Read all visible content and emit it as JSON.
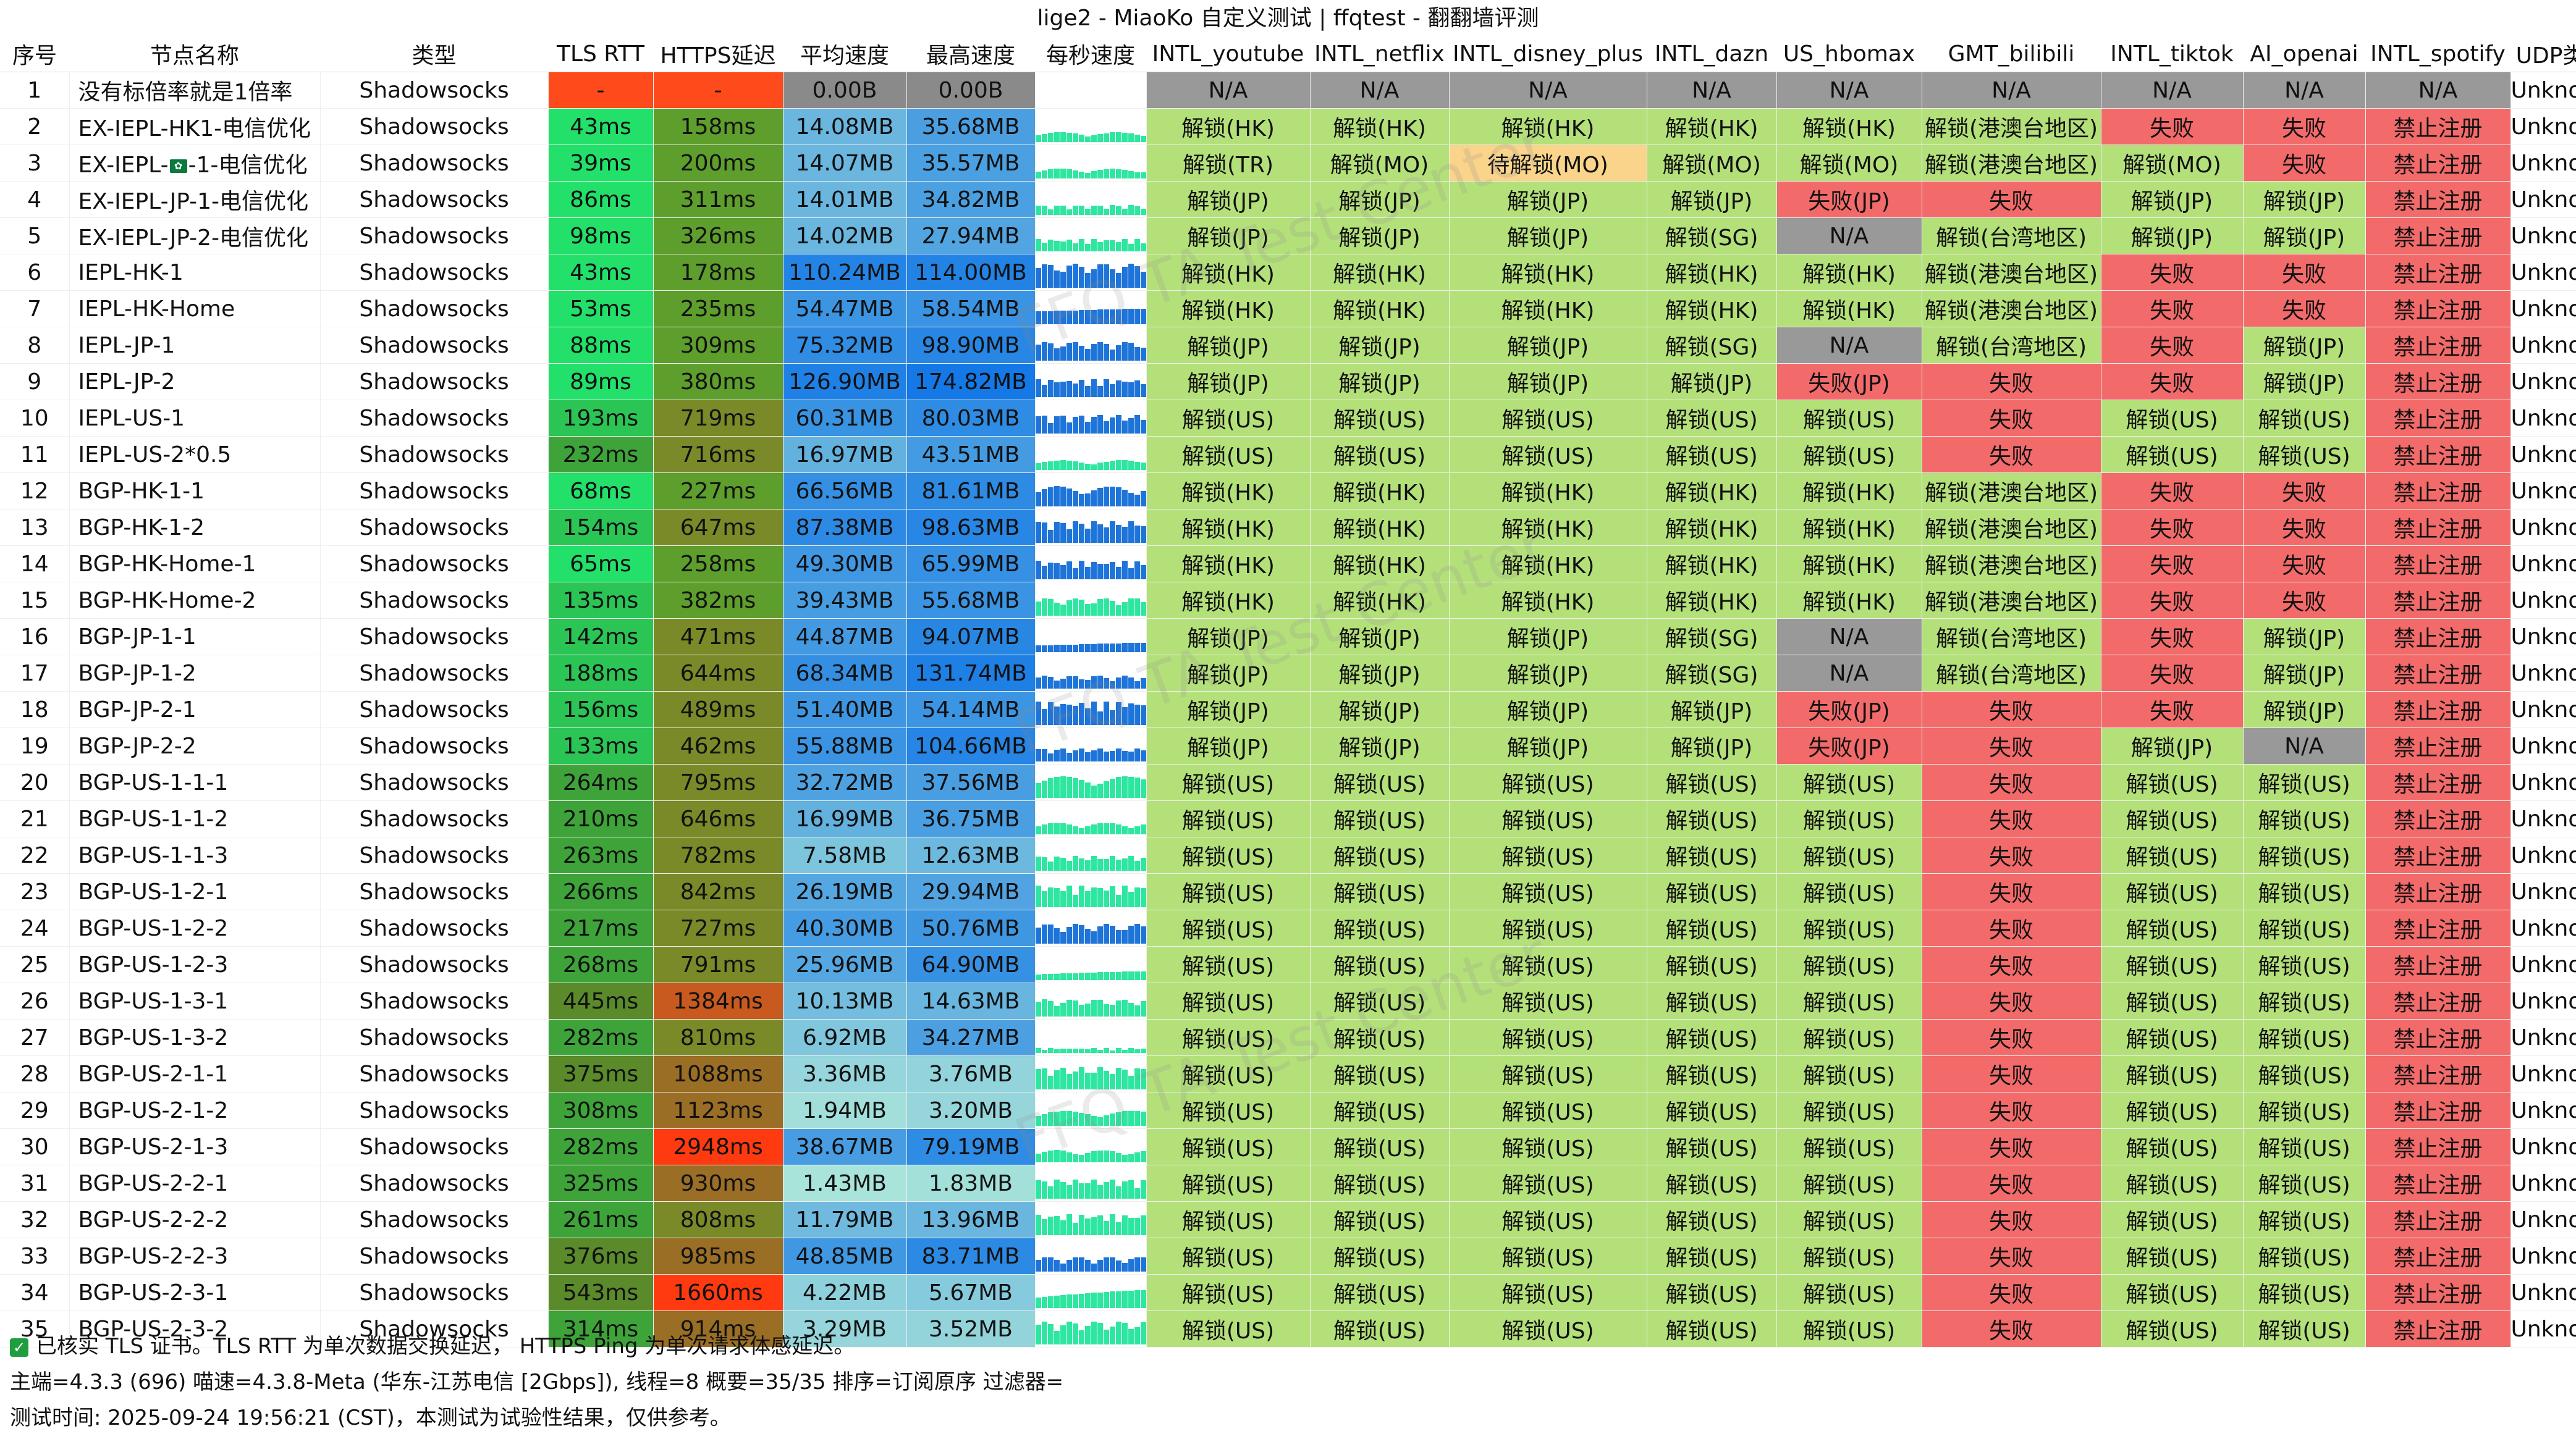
{
  "window": {
    "title": "lige2 - MiaoKo 自定义测试 | ffqtest - 翻翻墙评测"
  },
  "watermark": "FFQ TA Test Center",
  "columns": [
    "序号",
    "节点名称",
    "类型",
    "TLS RTT",
    "HTTPS延迟",
    "平均速度",
    "最高速度",
    "每秒速度",
    "INTL_youtube",
    "INTL_netflix",
    "INTL_disney_plus",
    "INTL_dazn",
    "US_hbomax",
    "GMT_bilibili",
    "INTL_tiktok",
    "AI_openai",
    "INTL_spotify",
    "UDP类型"
  ],
  "colors": {
    "rtt": {
      "-": "#ff4a1c",
      "good": "#22e06a",
      "mid": "#2bc556",
      "slow": "#3ea43a",
      "bad": "#5a8a2a"
    },
    "https": {
      "-": "#ff4a1c",
      "ok": "#5e9e2c",
      "mid": "#7a8a28",
      "slow": "#9a6e24",
      "bad": "#c85a20",
      "worst": "#ff3a10"
    },
    "speed_zero": "#8a8a8a",
    "unlock_ok": "#b4e07a",
    "unlock_fail": "#f26a6a",
    "unlock_na": "#999999",
    "unlock_pending": "#f9d48a",
    "spark_fast": "#1e74d8",
    "spark_slow": "#2ee6a0"
  },
  "rows": [
    {
      "idx": "1",
      "name": "没有标倍率就是1倍率",
      "type": "Shadowsocks",
      "rtt": "-",
      "https": "-",
      "avg": "0.00B",
      "max": "0.00B",
      "yt": "N/A",
      "nf": "N/A",
      "dp": "N/A",
      "dazn": "N/A",
      "hbo": "N/A",
      "bili": "N/A",
      "tiktok": "N/A",
      "openai": "N/A",
      "spotify": "N/A",
      "udp": "Unknown"
    },
    {
      "idx": "2",
      "name": "EX-IEPL-HK1-电信优化",
      "type": "Shadowsocks",
      "rtt": "43ms",
      "https": "158ms",
      "avg": "14.08MB",
      "max": "35.68MB",
      "yt": "解锁(HK)",
      "nf": "解锁(HK)",
      "dp": "解锁(HK)",
      "dazn": "解锁(HK)",
      "hbo": "解锁(HK)",
      "bili": "解锁(港澳台地区)",
      "tiktok": "失败",
      "openai": "失败",
      "spotify": "禁止注册",
      "udp": "Unknown"
    },
    {
      "idx": "3",
      "name_pre": "EX-IEPL-",
      "flag": "HK",
      "name_post": "-1-电信优化",
      "name": "EX-IEPL--1-电信优化",
      "type": "Shadowsocks",
      "rtt": "39ms",
      "https": "200ms",
      "avg": "14.07MB",
      "max": "35.57MB",
      "yt": "解锁(TR)",
      "nf": "解锁(MO)",
      "dp": "待解锁(MO)",
      "dazn": "解锁(MO)",
      "hbo": "解锁(MO)",
      "bili": "解锁(港澳台地区)",
      "tiktok": "解锁(MO)",
      "openai": "失败",
      "spotify": "禁止注册",
      "udp": "Unknown"
    },
    {
      "idx": "4",
      "name": "EX-IEPL-JP-1-电信优化",
      "type": "Shadowsocks",
      "rtt": "86ms",
      "https": "311ms",
      "avg": "14.01MB",
      "max": "34.82MB",
      "yt": "解锁(JP)",
      "nf": "解锁(JP)",
      "dp": "解锁(JP)",
      "dazn": "解锁(JP)",
      "hbo": "失败(JP)",
      "bili": "失败",
      "tiktok": "解锁(JP)",
      "openai": "解锁(JP)",
      "spotify": "禁止注册",
      "udp": "Unknown"
    },
    {
      "idx": "5",
      "name": "EX-IEPL-JP-2-电信优化",
      "type": "Shadowsocks",
      "rtt": "98ms",
      "https": "326ms",
      "avg": "14.02MB",
      "max": "27.94MB",
      "yt": "解锁(JP)",
      "nf": "解锁(JP)",
      "dp": "解锁(JP)",
      "dazn": "解锁(SG)",
      "hbo": "N/A",
      "bili": "解锁(台湾地区)",
      "tiktok": "解锁(JP)",
      "openai": "解锁(JP)",
      "spotify": "禁止注册",
      "udp": "Unknown"
    },
    {
      "idx": "6",
      "name": "IEPL-HK-1",
      "type": "Shadowsocks",
      "rtt": "43ms",
      "https": "178ms",
      "avg": "110.24MB",
      "max": "114.00MB",
      "yt": "解锁(HK)",
      "nf": "解锁(HK)",
      "dp": "解锁(HK)",
      "dazn": "解锁(HK)",
      "hbo": "解锁(HK)",
      "bili": "解锁(港澳台地区)",
      "tiktok": "失败",
      "openai": "失败",
      "spotify": "禁止注册",
      "udp": "Unknown"
    },
    {
      "idx": "7",
      "name": "IEPL-HK-Home",
      "type": "Shadowsocks",
      "rtt": "53ms",
      "https": "235ms",
      "avg": "54.47MB",
      "max": "58.54MB",
      "yt": "解锁(HK)",
      "nf": "解锁(HK)",
      "dp": "解锁(HK)",
      "dazn": "解锁(HK)",
      "hbo": "解锁(HK)",
      "bili": "解锁(港澳台地区)",
      "tiktok": "失败",
      "openai": "失败",
      "spotify": "禁止注册",
      "udp": "Unknown"
    },
    {
      "idx": "8",
      "name": "IEPL-JP-1",
      "type": "Shadowsocks",
      "rtt": "88ms",
      "https": "309ms",
      "avg": "75.32MB",
      "max": "98.90MB",
      "yt": "解锁(JP)",
      "nf": "解锁(JP)",
      "dp": "解锁(JP)",
      "dazn": "解锁(SG)",
      "hbo": "N/A",
      "bili": "解锁(台湾地区)",
      "tiktok": "失败",
      "openai": "解锁(JP)",
      "spotify": "禁止注册",
      "udp": "Unknown"
    },
    {
      "idx": "9",
      "name": "IEPL-JP-2",
      "type": "Shadowsocks",
      "rtt": "89ms",
      "https": "380ms",
      "avg": "126.90MB",
      "max": "174.82MB",
      "yt": "解锁(JP)",
      "nf": "解锁(JP)",
      "dp": "解锁(JP)",
      "dazn": "解锁(JP)",
      "hbo": "失败(JP)",
      "bili": "失败",
      "tiktok": "失败",
      "openai": "解锁(JP)",
      "spotify": "禁止注册",
      "udp": "Unknown"
    },
    {
      "idx": "10",
      "name": "IEPL-US-1",
      "type": "Shadowsocks",
      "rtt": "193ms",
      "https": "719ms",
      "avg": "60.31MB",
      "max": "80.03MB",
      "yt": "解锁(US)",
      "nf": "解锁(US)",
      "dp": "解锁(US)",
      "dazn": "解锁(US)",
      "hbo": "解锁(US)",
      "bili": "失败",
      "tiktok": "解锁(US)",
      "openai": "解锁(US)",
      "spotify": "禁止注册",
      "udp": "Unknown"
    },
    {
      "idx": "11",
      "name": "IEPL-US-2*0.5",
      "type": "Shadowsocks",
      "rtt": "232ms",
      "https": "716ms",
      "avg": "16.97MB",
      "max": "43.51MB",
      "yt": "解锁(US)",
      "nf": "解锁(US)",
      "dp": "解锁(US)",
      "dazn": "解锁(US)",
      "hbo": "解锁(US)",
      "bili": "失败",
      "tiktok": "解锁(US)",
      "openai": "解锁(US)",
      "spotify": "禁止注册",
      "udp": "Unknown"
    },
    {
      "idx": "12",
      "name": "BGP-HK-1-1",
      "type": "Shadowsocks",
      "rtt": "68ms",
      "https": "227ms",
      "avg": "66.56MB",
      "max": "81.61MB",
      "yt": "解锁(HK)",
      "nf": "解锁(HK)",
      "dp": "解锁(HK)",
      "dazn": "解锁(HK)",
      "hbo": "解锁(HK)",
      "bili": "解锁(港澳台地区)",
      "tiktok": "失败",
      "openai": "失败",
      "spotify": "禁止注册",
      "udp": "Unknown"
    },
    {
      "idx": "13",
      "name": "BGP-HK-1-2",
      "type": "Shadowsocks",
      "rtt": "154ms",
      "https": "647ms",
      "avg": "87.38MB",
      "max": "98.63MB",
      "yt": "解锁(HK)",
      "nf": "解锁(HK)",
      "dp": "解锁(HK)",
      "dazn": "解锁(HK)",
      "hbo": "解锁(HK)",
      "bili": "解锁(港澳台地区)",
      "tiktok": "失败",
      "openai": "失败",
      "spotify": "禁止注册",
      "udp": "Unknown"
    },
    {
      "idx": "14",
      "name": "BGP-HK-Home-1",
      "type": "Shadowsocks",
      "rtt": "65ms",
      "https": "258ms",
      "avg": "49.30MB",
      "max": "65.99MB",
      "yt": "解锁(HK)",
      "nf": "解锁(HK)",
      "dp": "解锁(HK)",
      "dazn": "解锁(HK)",
      "hbo": "解锁(HK)",
      "bili": "解锁(港澳台地区)",
      "tiktok": "失败",
      "openai": "失败",
      "spotify": "禁止注册",
      "udp": "Unknown"
    },
    {
      "idx": "15",
      "name": "BGP-HK-Home-2",
      "type": "Shadowsocks",
      "rtt": "135ms",
      "https": "382ms",
      "avg": "39.43MB",
      "max": "55.68MB",
      "yt": "解锁(HK)",
      "nf": "解锁(HK)",
      "dp": "解锁(HK)",
      "dazn": "解锁(HK)",
      "hbo": "解锁(HK)",
      "bili": "解锁(港澳台地区)",
      "tiktok": "失败",
      "openai": "失败",
      "spotify": "禁止注册",
      "udp": "Unknown"
    },
    {
      "idx": "16",
      "name": "BGP-JP-1-1",
      "type": "Shadowsocks",
      "rtt": "142ms",
      "https": "471ms",
      "avg": "44.87MB",
      "max": "94.07MB",
      "yt": "解锁(JP)",
      "nf": "解锁(JP)",
      "dp": "解锁(JP)",
      "dazn": "解锁(SG)",
      "hbo": "N/A",
      "bili": "解锁(台湾地区)",
      "tiktok": "失败",
      "openai": "解锁(JP)",
      "spotify": "禁止注册",
      "udp": "Unknown"
    },
    {
      "idx": "17",
      "name": "BGP-JP-1-2",
      "type": "Shadowsocks",
      "rtt": "188ms",
      "https": "644ms",
      "avg": "68.34MB",
      "max": "131.74MB",
      "yt": "解锁(JP)",
      "nf": "解锁(JP)",
      "dp": "解锁(JP)",
      "dazn": "解锁(SG)",
      "hbo": "N/A",
      "bili": "解锁(台湾地区)",
      "tiktok": "失败",
      "openai": "解锁(JP)",
      "spotify": "禁止注册",
      "udp": "Unknown"
    },
    {
      "idx": "18",
      "name": "BGP-JP-2-1",
      "type": "Shadowsocks",
      "rtt": "156ms",
      "https": "489ms",
      "avg": "51.40MB",
      "max": "54.14MB",
      "yt": "解锁(JP)",
      "nf": "解锁(JP)",
      "dp": "解锁(JP)",
      "dazn": "解锁(JP)",
      "hbo": "失败(JP)",
      "bili": "失败",
      "tiktok": "失败",
      "openai": "解锁(JP)",
      "spotify": "禁止注册",
      "udp": "Unknown"
    },
    {
      "idx": "19",
      "name": "BGP-JP-2-2",
      "type": "Shadowsocks",
      "rtt": "133ms",
      "https": "462ms",
      "avg": "55.88MB",
      "max": "104.66MB",
      "yt": "解锁(JP)",
      "nf": "解锁(JP)",
      "dp": "解锁(JP)",
      "dazn": "解锁(JP)",
      "hbo": "失败(JP)",
      "bili": "失败",
      "tiktok": "解锁(JP)",
      "openai": "N/A",
      "spotify": "禁止注册",
      "udp": "Unknown"
    },
    {
      "idx": "20",
      "name": "BGP-US-1-1-1",
      "type": "Shadowsocks",
      "rtt": "264ms",
      "https": "795ms",
      "avg": "32.72MB",
      "max": "37.56MB",
      "yt": "解锁(US)",
      "nf": "解锁(US)",
      "dp": "解锁(US)",
      "dazn": "解锁(US)",
      "hbo": "解锁(US)",
      "bili": "失败",
      "tiktok": "解锁(US)",
      "openai": "解锁(US)",
      "spotify": "禁止注册",
      "udp": "Unknown"
    },
    {
      "idx": "21",
      "name": "BGP-US-1-1-2",
      "type": "Shadowsocks",
      "rtt": "210ms",
      "https": "646ms",
      "avg": "16.99MB",
      "max": "36.75MB",
      "yt": "解锁(US)",
      "nf": "解锁(US)",
      "dp": "解锁(US)",
      "dazn": "解锁(US)",
      "hbo": "解锁(US)",
      "bili": "失败",
      "tiktok": "解锁(US)",
      "openai": "解锁(US)",
      "spotify": "禁止注册",
      "udp": "Unknown"
    },
    {
      "idx": "22",
      "name": "BGP-US-1-1-3",
      "type": "Shadowsocks",
      "rtt": "263ms",
      "https": "782ms",
      "avg": "7.58MB",
      "max": "12.63MB",
      "yt": "解锁(US)",
      "nf": "解锁(US)",
      "dp": "解锁(US)",
      "dazn": "解锁(US)",
      "hbo": "解锁(US)",
      "bili": "失败",
      "tiktok": "解锁(US)",
      "openai": "解锁(US)",
      "spotify": "禁止注册",
      "udp": "Unknown"
    },
    {
      "idx": "23",
      "name": "BGP-US-1-2-1",
      "type": "Shadowsocks",
      "rtt": "266ms",
      "https": "842ms",
      "avg": "26.19MB",
      "max": "29.94MB",
      "yt": "解锁(US)",
      "nf": "解锁(US)",
      "dp": "解锁(US)",
      "dazn": "解锁(US)",
      "hbo": "解锁(US)",
      "bili": "失败",
      "tiktok": "解锁(US)",
      "openai": "解锁(US)",
      "spotify": "禁止注册",
      "udp": "Unknown"
    },
    {
      "idx": "24",
      "name": "BGP-US-1-2-2",
      "type": "Shadowsocks",
      "rtt": "217ms",
      "https": "727ms",
      "avg": "40.30MB",
      "max": "50.76MB",
      "yt": "解锁(US)",
      "nf": "解锁(US)",
      "dp": "解锁(US)",
      "dazn": "解锁(US)",
      "hbo": "解锁(US)",
      "bili": "失败",
      "tiktok": "解锁(US)",
      "openai": "解锁(US)",
      "spotify": "禁止注册",
      "udp": "Unknown"
    },
    {
      "idx": "25",
      "name": "BGP-US-1-2-3",
      "type": "Shadowsocks",
      "rtt": "268ms",
      "https": "791ms",
      "avg": "25.96MB",
      "max": "64.90MB",
      "yt": "解锁(US)",
      "nf": "解锁(US)",
      "dp": "解锁(US)",
      "dazn": "解锁(US)",
      "hbo": "解锁(US)",
      "bili": "失败",
      "tiktok": "解锁(US)",
      "openai": "解锁(US)",
      "spotify": "禁止注册",
      "udp": "Unknown"
    },
    {
      "idx": "26",
      "name": "BGP-US-1-3-1",
      "type": "Shadowsocks",
      "rtt": "445ms",
      "https": "1384ms",
      "avg": "10.13MB",
      "max": "14.63MB",
      "yt": "解锁(US)",
      "nf": "解锁(US)",
      "dp": "解锁(US)",
      "dazn": "解锁(US)",
      "hbo": "解锁(US)",
      "bili": "失败",
      "tiktok": "解锁(US)",
      "openai": "解锁(US)",
      "spotify": "禁止注册",
      "udp": "Unknown"
    },
    {
      "idx": "27",
      "name": "BGP-US-1-3-2",
      "type": "Shadowsocks",
      "rtt": "282ms",
      "https": "810ms",
      "avg": "6.92MB",
      "max": "34.27MB",
      "yt": "解锁(US)",
      "nf": "解锁(US)",
      "dp": "解锁(US)",
      "dazn": "解锁(US)",
      "hbo": "解锁(US)",
      "bili": "失败",
      "tiktok": "解锁(US)",
      "openai": "解锁(US)",
      "spotify": "禁止注册",
      "udp": "Unknown"
    },
    {
      "idx": "28",
      "name": "BGP-US-2-1-1",
      "type": "Shadowsocks",
      "rtt": "375ms",
      "https": "1088ms",
      "avg": "3.36MB",
      "max": "3.76MB",
      "yt": "解锁(US)",
      "nf": "解锁(US)",
      "dp": "解锁(US)",
      "dazn": "解锁(US)",
      "hbo": "解锁(US)",
      "bili": "失败",
      "tiktok": "解锁(US)",
      "openai": "解锁(US)",
      "spotify": "禁止注册",
      "udp": "Unknown"
    },
    {
      "idx": "29",
      "name": "BGP-US-2-1-2",
      "type": "Shadowsocks",
      "rtt": "308ms",
      "https": "1123ms",
      "avg": "1.94MB",
      "max": "3.20MB",
      "yt": "解锁(US)",
      "nf": "解锁(US)",
      "dp": "解锁(US)",
      "dazn": "解锁(US)",
      "hbo": "解锁(US)",
      "bili": "失败",
      "tiktok": "解锁(US)",
      "openai": "解锁(US)",
      "spotify": "禁止注册",
      "udp": "Unknown"
    },
    {
      "idx": "30",
      "name": "BGP-US-2-1-3",
      "type": "Shadowsocks",
      "rtt": "282ms",
      "https": "2948ms",
      "avg": "38.67MB",
      "max": "79.19MB",
      "yt": "解锁(US)",
      "nf": "解锁(US)",
      "dp": "解锁(US)",
      "dazn": "解锁(US)",
      "hbo": "解锁(US)",
      "bili": "失败",
      "tiktok": "解锁(US)",
      "openai": "解锁(US)",
      "spotify": "禁止注册",
      "udp": "Unknown"
    },
    {
      "idx": "31",
      "name": "BGP-US-2-2-1",
      "type": "Shadowsocks",
      "rtt": "325ms",
      "https": "930ms",
      "avg": "1.43MB",
      "max": "1.83MB",
      "yt": "解锁(US)",
      "nf": "解锁(US)",
      "dp": "解锁(US)",
      "dazn": "解锁(US)",
      "hbo": "解锁(US)",
      "bili": "失败",
      "tiktok": "解锁(US)",
      "openai": "解锁(US)",
      "spotify": "禁止注册",
      "udp": "Unknown"
    },
    {
      "idx": "32",
      "name": "BGP-US-2-2-2",
      "type": "Shadowsocks",
      "rtt": "261ms",
      "https": "808ms",
      "avg": "11.79MB",
      "max": "13.96MB",
      "yt": "解锁(US)",
      "nf": "解锁(US)",
      "dp": "解锁(US)",
      "dazn": "解锁(US)",
      "hbo": "解锁(US)",
      "bili": "失败",
      "tiktok": "解锁(US)",
      "openai": "解锁(US)",
      "spotify": "禁止注册",
      "udp": "Unknown"
    },
    {
      "idx": "33",
      "name": "BGP-US-2-2-3",
      "type": "Shadowsocks",
      "rtt": "376ms",
      "https": "985ms",
      "avg": "48.85MB",
      "max": "83.71MB",
      "yt": "解锁(US)",
      "nf": "解锁(US)",
      "dp": "解锁(US)",
      "dazn": "解锁(US)",
      "hbo": "解锁(US)",
      "bili": "失败",
      "tiktok": "解锁(US)",
      "openai": "解锁(US)",
      "spotify": "禁止注册",
      "udp": "Unknown"
    },
    {
      "idx": "34",
      "name": "BGP-US-2-3-1",
      "type": "Shadowsocks",
      "rtt": "543ms",
      "https": "1660ms",
      "avg": "4.22MB",
      "max": "5.67MB",
      "yt": "解锁(US)",
      "nf": "解锁(US)",
      "dp": "解锁(US)",
      "dazn": "解锁(US)",
      "hbo": "解锁(US)",
      "bili": "失败",
      "tiktok": "解锁(US)",
      "openai": "解锁(US)",
      "spotify": "禁止注册",
      "udp": "Unknown"
    },
    {
      "idx": "35",
      "name": "BGP-US-2-3-2",
      "type": "Shadowsocks",
      "rtt": "314ms",
      "https": "914ms",
      "avg": "3.29MB",
      "max": "3.52MB",
      "yt": "解锁(US)",
      "nf": "解锁(US)",
      "dp": "解锁(US)",
      "dazn": "解锁(US)",
      "hbo": "解锁(US)",
      "bili": "失败",
      "tiktok": "解锁(US)",
      "openai": "解锁(US)",
      "spotify": "禁止注册",
      "udp": "Unknown"
    }
  ],
  "footer": {
    "note": "已核实 TLS 证书。TLS RTT 为单次数据交换延迟， HTTPS Ping 为单次请求体感延迟。",
    "info": "主端=4.3.3 (696) 喵速=4.3.8-Meta (华东-江苏电信 [2Gbps]), 线程=8 概要=35/35 排序=订阅原序 过滤器=",
    "time": "测试时间:  2025-09-24 19:56:21 (CST)，本测试为试验性结果，仅供参考。"
  }
}
